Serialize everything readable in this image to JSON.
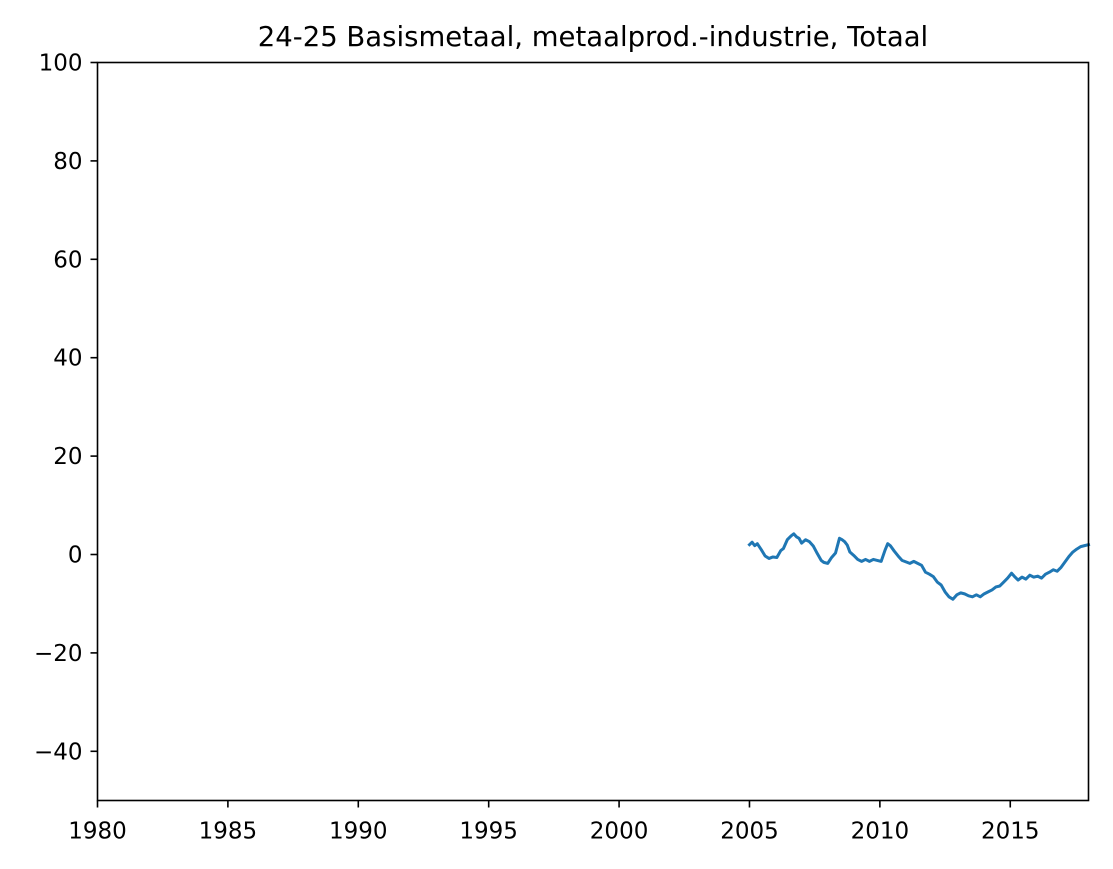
{
  "chart_data": {
    "type": "line",
    "title": "24-25 Basismetaal, metaalprod.-industrie, Totaal",
    "xlabel": "",
    "ylabel": "",
    "xlim": [
      1980,
      2018
    ],
    "ylim": [
      -50,
      100
    ],
    "xticks": [
      1980,
      1985,
      1990,
      1995,
      2000,
      2005,
      2010,
      2015
    ],
    "xtick_labels": [
      "1980",
      "1985",
      "1990",
      "1995",
      "2000",
      "2005",
      "2010",
      "2015"
    ],
    "yticks": [
      -40,
      -20,
      0,
      20,
      40,
      60,
      80,
      100
    ],
    "ytick_labels": [
      "−40",
      "−20",
      "0",
      "20",
      "40",
      "60",
      "80",
      "100"
    ],
    "grid": false,
    "legend": "none",
    "series": [
      {
        "color": "#1f77b4",
        "x": [
          2005.0,
          2005.1,
          2005.2,
          2005.3,
          2005.45,
          2005.6,
          2005.75,
          2005.9,
          2006.05,
          2006.2,
          2006.3,
          2006.45,
          2006.6,
          2006.7,
          2006.8,
          2006.9,
          2007.0,
          2007.15,
          2007.3,
          2007.45,
          2007.6,
          2007.75,
          2007.85,
          2008.0,
          2008.15,
          2008.3,
          2008.45,
          2008.55,
          2008.65,
          2008.75,
          2008.85,
          2009.0,
          2009.15,
          2009.3,
          2009.45,
          2009.6,
          2009.75,
          2009.9,
          2010.05,
          2010.2,
          2010.3,
          2010.4,
          2010.55,
          2010.7,
          2010.85,
          2011.0,
          2011.15,
          2011.3,
          2011.45,
          2011.6,
          2011.75,
          2011.9,
          2012.05,
          2012.2,
          2012.35,
          2012.5,
          2012.65,
          2012.8,
          2012.95,
          2013.1,
          2013.25,
          2013.4,
          2013.55,
          2013.7,
          2013.85,
          2014.0,
          2014.15,
          2014.3,
          2014.45,
          2014.6,
          2014.75,
          2014.9,
          2015.05,
          2015.15,
          2015.3,
          2015.45,
          2015.6,
          2015.75,
          2015.9,
          2016.05,
          2016.2,
          2016.35,
          2016.5,
          2016.65,
          2016.8,
          2016.95,
          2017.1,
          2017.25,
          2017.4,
          2017.55,
          2017.7,
          2017.85,
          2018.0
        ],
        "y": [
          2.0,
          2.5,
          1.8,
          2.2,
          1.0,
          -0.3,
          -0.8,
          -0.5,
          -0.6,
          0.8,
          1.2,
          3.0,
          3.8,
          4.2,
          3.6,
          3.3,
          2.3,
          3.0,
          2.6,
          1.7,
          0.2,
          -1.2,
          -1.6,
          -1.8,
          -0.6,
          0.3,
          3.3,
          3.0,
          2.6,
          1.9,
          0.5,
          -0.2,
          -1.0,
          -1.4,
          -1.0,
          -1.4,
          -1.0,
          -1.2,
          -1.4,
          0.9,
          2.2,
          1.8,
          0.7,
          -0.3,
          -1.2,
          -1.5,
          -1.8,
          -1.4,
          -1.8,
          -2.2,
          -3.6,
          -4.0,
          -4.5,
          -5.6,
          -6.2,
          -7.6,
          -8.6,
          -9.1,
          -8.2,
          -7.8,
          -8.0,
          -8.4,
          -8.6,
          -8.2,
          -8.6,
          -8.0,
          -7.6,
          -7.2,
          -6.6,
          -6.4,
          -5.6,
          -4.8,
          -3.8,
          -4.4,
          -5.2,
          -4.6,
          -5.0,
          -4.2,
          -4.6,
          -4.4,
          -4.8,
          -4.0,
          -3.6,
          -3.1,
          -3.4,
          -2.6,
          -1.5,
          -0.4,
          0.5,
          1.1,
          1.6,
          1.8,
          2.0
        ]
      }
    ]
  }
}
